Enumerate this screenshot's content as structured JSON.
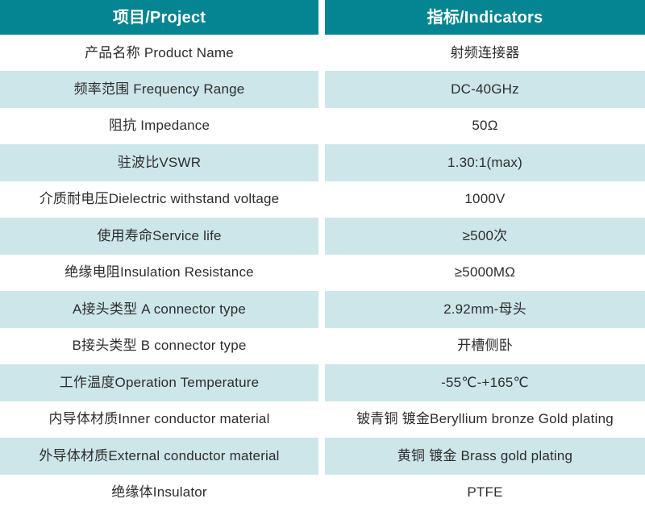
{
  "table": {
    "title": "product-specification-table",
    "colors": {
      "header_bg": "#058591",
      "header_text": "#ffffff",
      "row_tint_bg": "#cde6ea",
      "row_plain_bg": "#ffffff",
      "body_text": "#2d2d2d"
    },
    "header": {
      "project": "项目/Project",
      "indicator": "指标/Indicators"
    },
    "rows": [
      {
        "project": "产品名称 Product Name",
        "indicator": "射频连接器"
      },
      {
        "project": "频率范围 Frequency Range",
        "indicator": "DC-40GHz"
      },
      {
        "project": "阻抗 Impedance",
        "indicator": "50Ω"
      },
      {
        "project": "驻波比VSWR",
        "indicator": "1.30:1(max)"
      },
      {
        "project": "介质耐电压Dielectric withstand voltage",
        "indicator": "1000V"
      },
      {
        "project": "使用寿命Service life",
        "indicator": "≥500次"
      },
      {
        "project": "绝缘电阻Insulation Resistance",
        "indicator": "≥5000MΩ"
      },
      {
        "project": "A接头类型 A connector type",
        "indicator": "2.92mm-母头"
      },
      {
        "project": "B接头类型 B connector type",
        "indicator": "开槽侧卧"
      },
      {
        "project": "工作温度Operation Temperature",
        "indicator": "-55℃-+165℃"
      },
      {
        "project": "内导体材质Inner conductor material",
        "indicator": "铍青铜 镀金Beryllium bronze Gold plating"
      },
      {
        "project": "外导体材质External conductor material",
        "indicator": "黄铜 镀金 Brass gold plating"
      },
      {
        "project": "绝缘体Insulator",
        "indicator": "PTFE"
      }
    ]
  }
}
